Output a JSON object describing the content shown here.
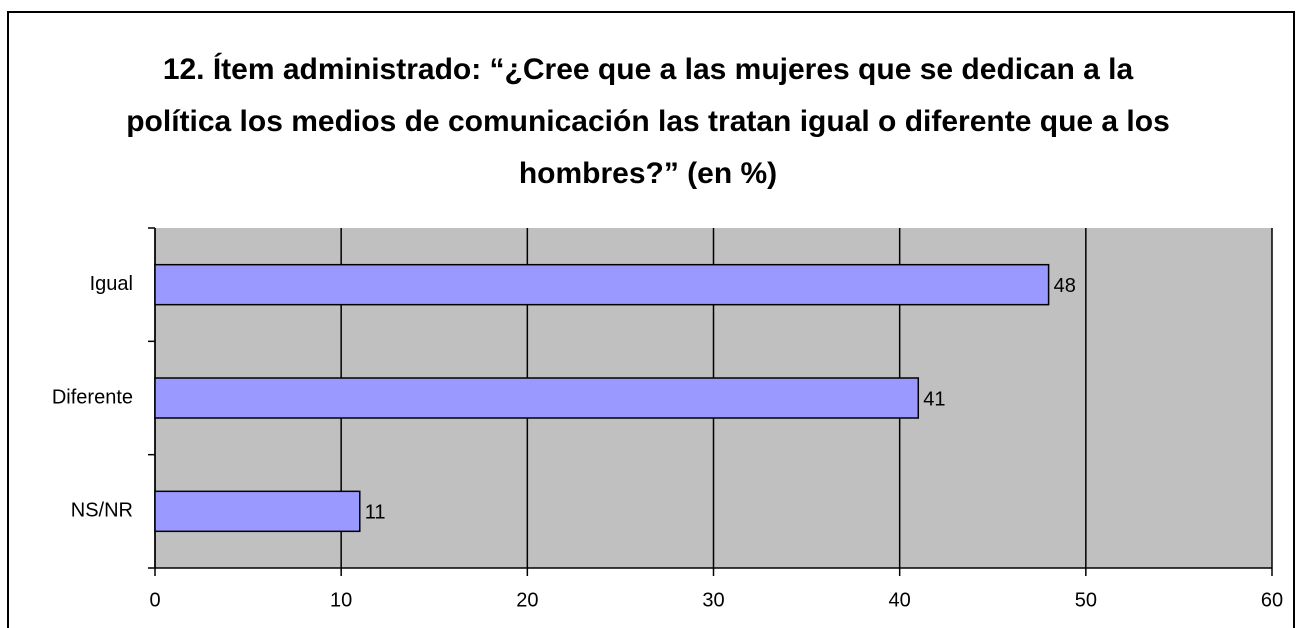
{
  "chart_data": {
    "type": "bar",
    "orientation": "horizontal",
    "title": "12. Ítem administrado: “¿Cree que a las mujeres que se dedican a la política los medios de comunicación las tratan igual o diferente que a los hombres?” (en %)",
    "categories": [
      "Igual",
      "Diferente",
      "NS/NR"
    ],
    "values": [
      48,
      41,
      11
    ],
    "color": "#9999ff",
    "xlim": [
      0,
      60
    ],
    "xticks": [
      0,
      10,
      20,
      30,
      40,
      50,
      60
    ],
    "grid": true
  }
}
